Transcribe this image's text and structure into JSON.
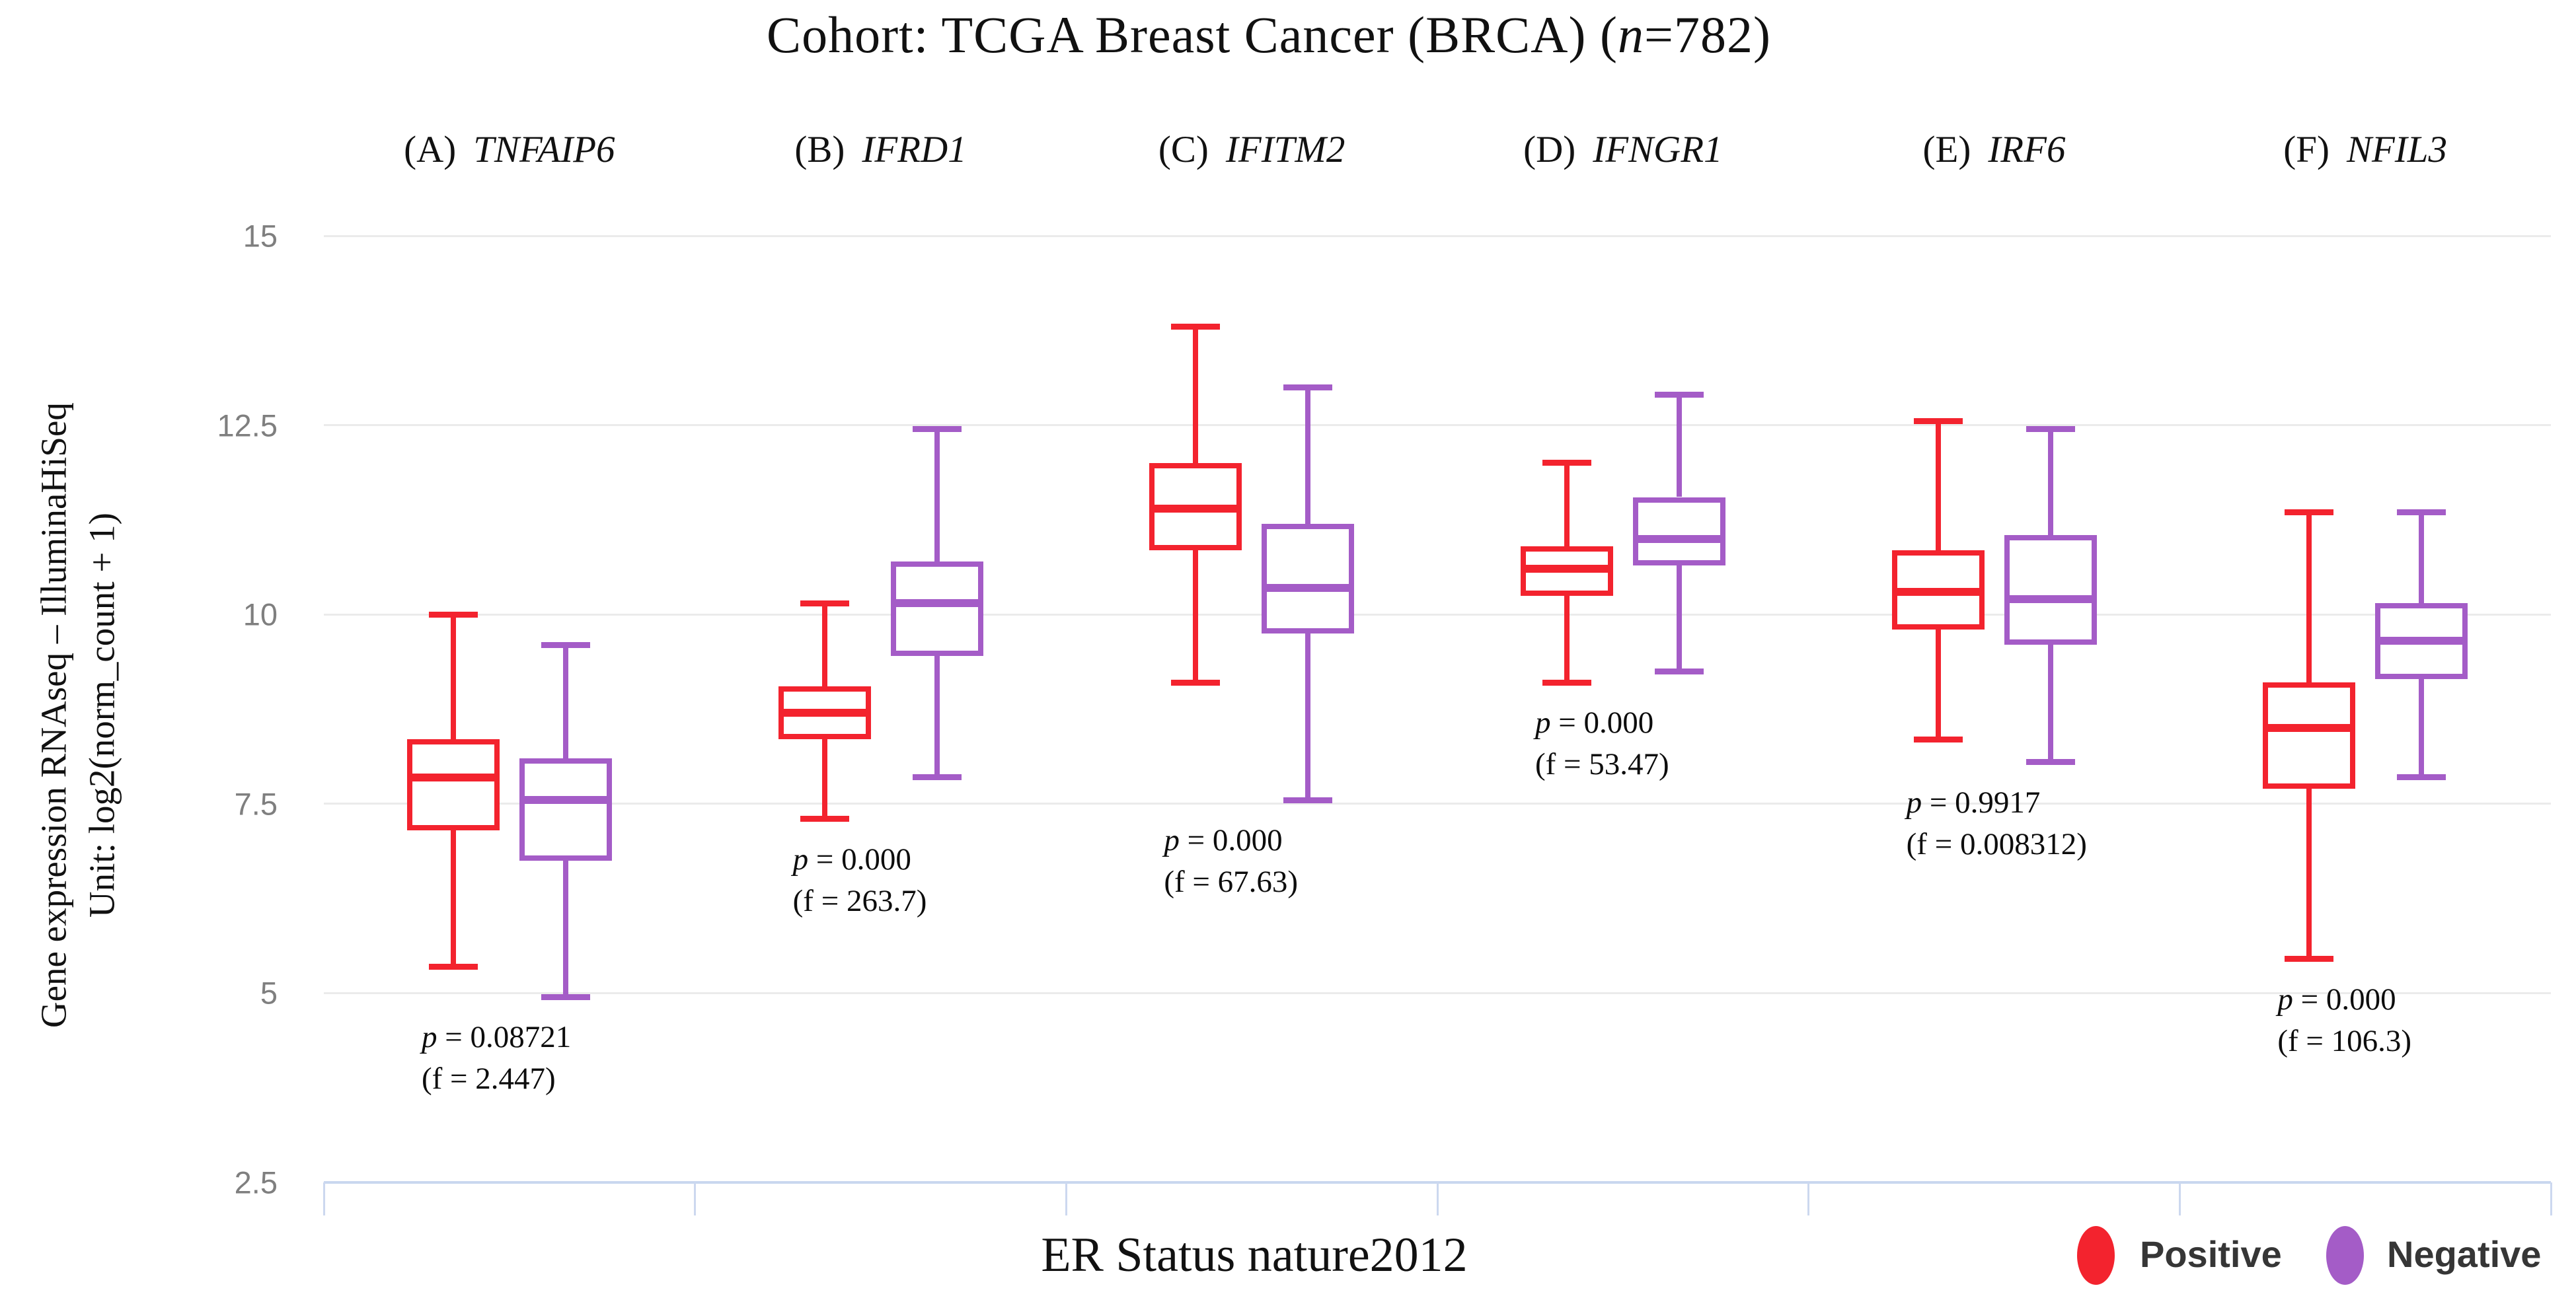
{
  "title": {
    "prefix": "Cohort: TCGA Breast Cancer (BRCA) (",
    "n": "n",
    "suffix": "=782)"
  },
  "y_axis": {
    "label_line1": "Gene expression RNAseq – IlluminaHiSeq",
    "label_line2": "Unit: log2(norm_count + 1)",
    "tick_labels": [
      "15",
      "12.5",
      "10",
      "7.5",
      "5",
      "2.5"
    ]
  },
  "x_axis": {
    "label": "ER Status nature2012"
  },
  "legend": [
    {
      "label": "Positive",
      "color": "#F3232E"
    },
    {
      "label": "Negative",
      "color": "#A45CC7"
    }
  ],
  "chart_data": {
    "type": "boxplot",
    "title": "Cohort: TCGA Breast Cancer (BRCA) (n=782)",
    "xlabel": "ER Status nature2012",
    "ylabel": "Gene expression RNAseq – IlluminaHiSeq, Unit: log2(norm_count + 1)",
    "ylim": [
      2.5,
      15
    ],
    "yticks": [
      15,
      12.5,
      10,
      7.5,
      5,
      2.5
    ],
    "grid": true,
    "legend_position": "bottom-right",
    "groups": [
      "Positive",
      "Negative"
    ],
    "colors": {
      "positive": "#F3232E",
      "negative": "#A45CC7",
      "grid": "#ebebeb",
      "axis": "#c9d7ef"
    },
    "panels": [
      {
        "letter": "(A)",
        "gene": "TNFAIP6",
        "p_label": "p = 0.08721",
        "f_label": "(f = 2.447)",
        "positive": {
          "low": 5.35,
          "q1": 7.15,
          "median": 7.85,
          "q3": 8.35,
          "high": 10.0
        },
        "negative": {
          "low": 4.95,
          "q1": 6.75,
          "median": 7.55,
          "q3": 8.1,
          "high": 9.6
        }
      },
      {
        "letter": "(B)",
        "gene": "IFRD1",
        "p_label": "p = 0.000",
        "f_label": "(f = 263.7)",
        "positive": {
          "low": 7.3,
          "q1": 8.35,
          "median": 8.7,
          "q3": 9.05,
          "high": 10.15
        },
        "negative": {
          "low": 7.85,
          "q1": 9.45,
          "median": 10.15,
          "q3": 10.7,
          "high": 12.45
        }
      },
      {
        "letter": "(C)",
        "gene": "IFITM2",
        "p_label": "p = 0.000",
        "f_label": "(f = 67.63)",
        "positive": {
          "low": 9.1,
          "q1": 10.85,
          "median": 11.4,
          "q3": 12.0,
          "high": 13.8
        },
        "negative": {
          "low": 7.55,
          "q1": 9.75,
          "median": 10.35,
          "q3": 11.2,
          "high": 13.0
        }
      },
      {
        "letter": "(D)",
        "gene": "IFNGR1",
        "p_label": "p = 0.000",
        "f_label": "(f = 53.47)",
        "positive": {
          "low": 9.1,
          "q1": 10.25,
          "median": 10.6,
          "q3": 10.9,
          "high": 12.0
        },
        "negative": {
          "low": 9.25,
          "q1": 10.65,
          "median": 11.0,
          "q3": 11.55,
          "high": 12.9
        }
      },
      {
        "letter": "(E)",
        "gene": "IRF6",
        "p_label": "p = 0.9917",
        "f_label": "(f = 0.008312)",
        "positive": {
          "low": 8.35,
          "q1": 9.8,
          "median": 10.3,
          "q3": 10.85,
          "high": 12.55
        },
        "negative": {
          "low": 8.05,
          "q1": 9.6,
          "median": 10.2,
          "q3": 11.05,
          "high": 12.45
        }
      },
      {
        "letter": "(F)",
        "gene": "NFIL3",
        "p_label": "p = 0.000",
        "f_label": "(f = 106.3)",
        "positive": {
          "low": 5.45,
          "q1": 7.7,
          "median": 8.5,
          "q3": 9.1,
          "high": 11.35
        },
        "negative": {
          "low": 7.85,
          "q1": 9.15,
          "median": 9.65,
          "q3": 10.15,
          "high": 11.35
        }
      }
    ]
  }
}
